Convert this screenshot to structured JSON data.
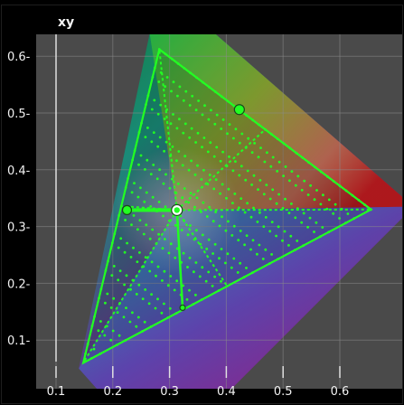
{
  "chart_data": {
    "type": "scatter",
    "title": "xy",
    "xlabel": "",
    "ylabel": "",
    "xlim": [
      0.1,
      0.7
    ],
    "ylim": [
      0.0,
      0.62
    ],
    "x_ticks": [
      "0.1",
      "0.2",
      "0.3",
      "0.4",
      "0.5",
      "0.6"
    ],
    "y_ticks": [
      "0.1-",
      "0.2-",
      "0.3-",
      "0.4-",
      "0.5-",
      "0.6-"
    ],
    "grid": true,
    "gamut_triangle": [
      {
        "x": 0.282,
        "y": 0.612
      },
      {
        "x": 0.655,
        "y": 0.33
      },
      {
        "x": 0.148,
        "y": 0.06
      }
    ],
    "markers": [
      {
        "x": 0.423,
        "y": 0.506
      },
      {
        "x": 0.313,
        "y": 0.329
      },
      {
        "x": 0.225,
        "y": 0.329
      },
      {
        "x": 0.323,
        "y": 0.157
      }
    ],
    "colors": {
      "points": "#22ff22",
      "background": "#000000",
      "grid": "#8a8a8a"
    }
  }
}
